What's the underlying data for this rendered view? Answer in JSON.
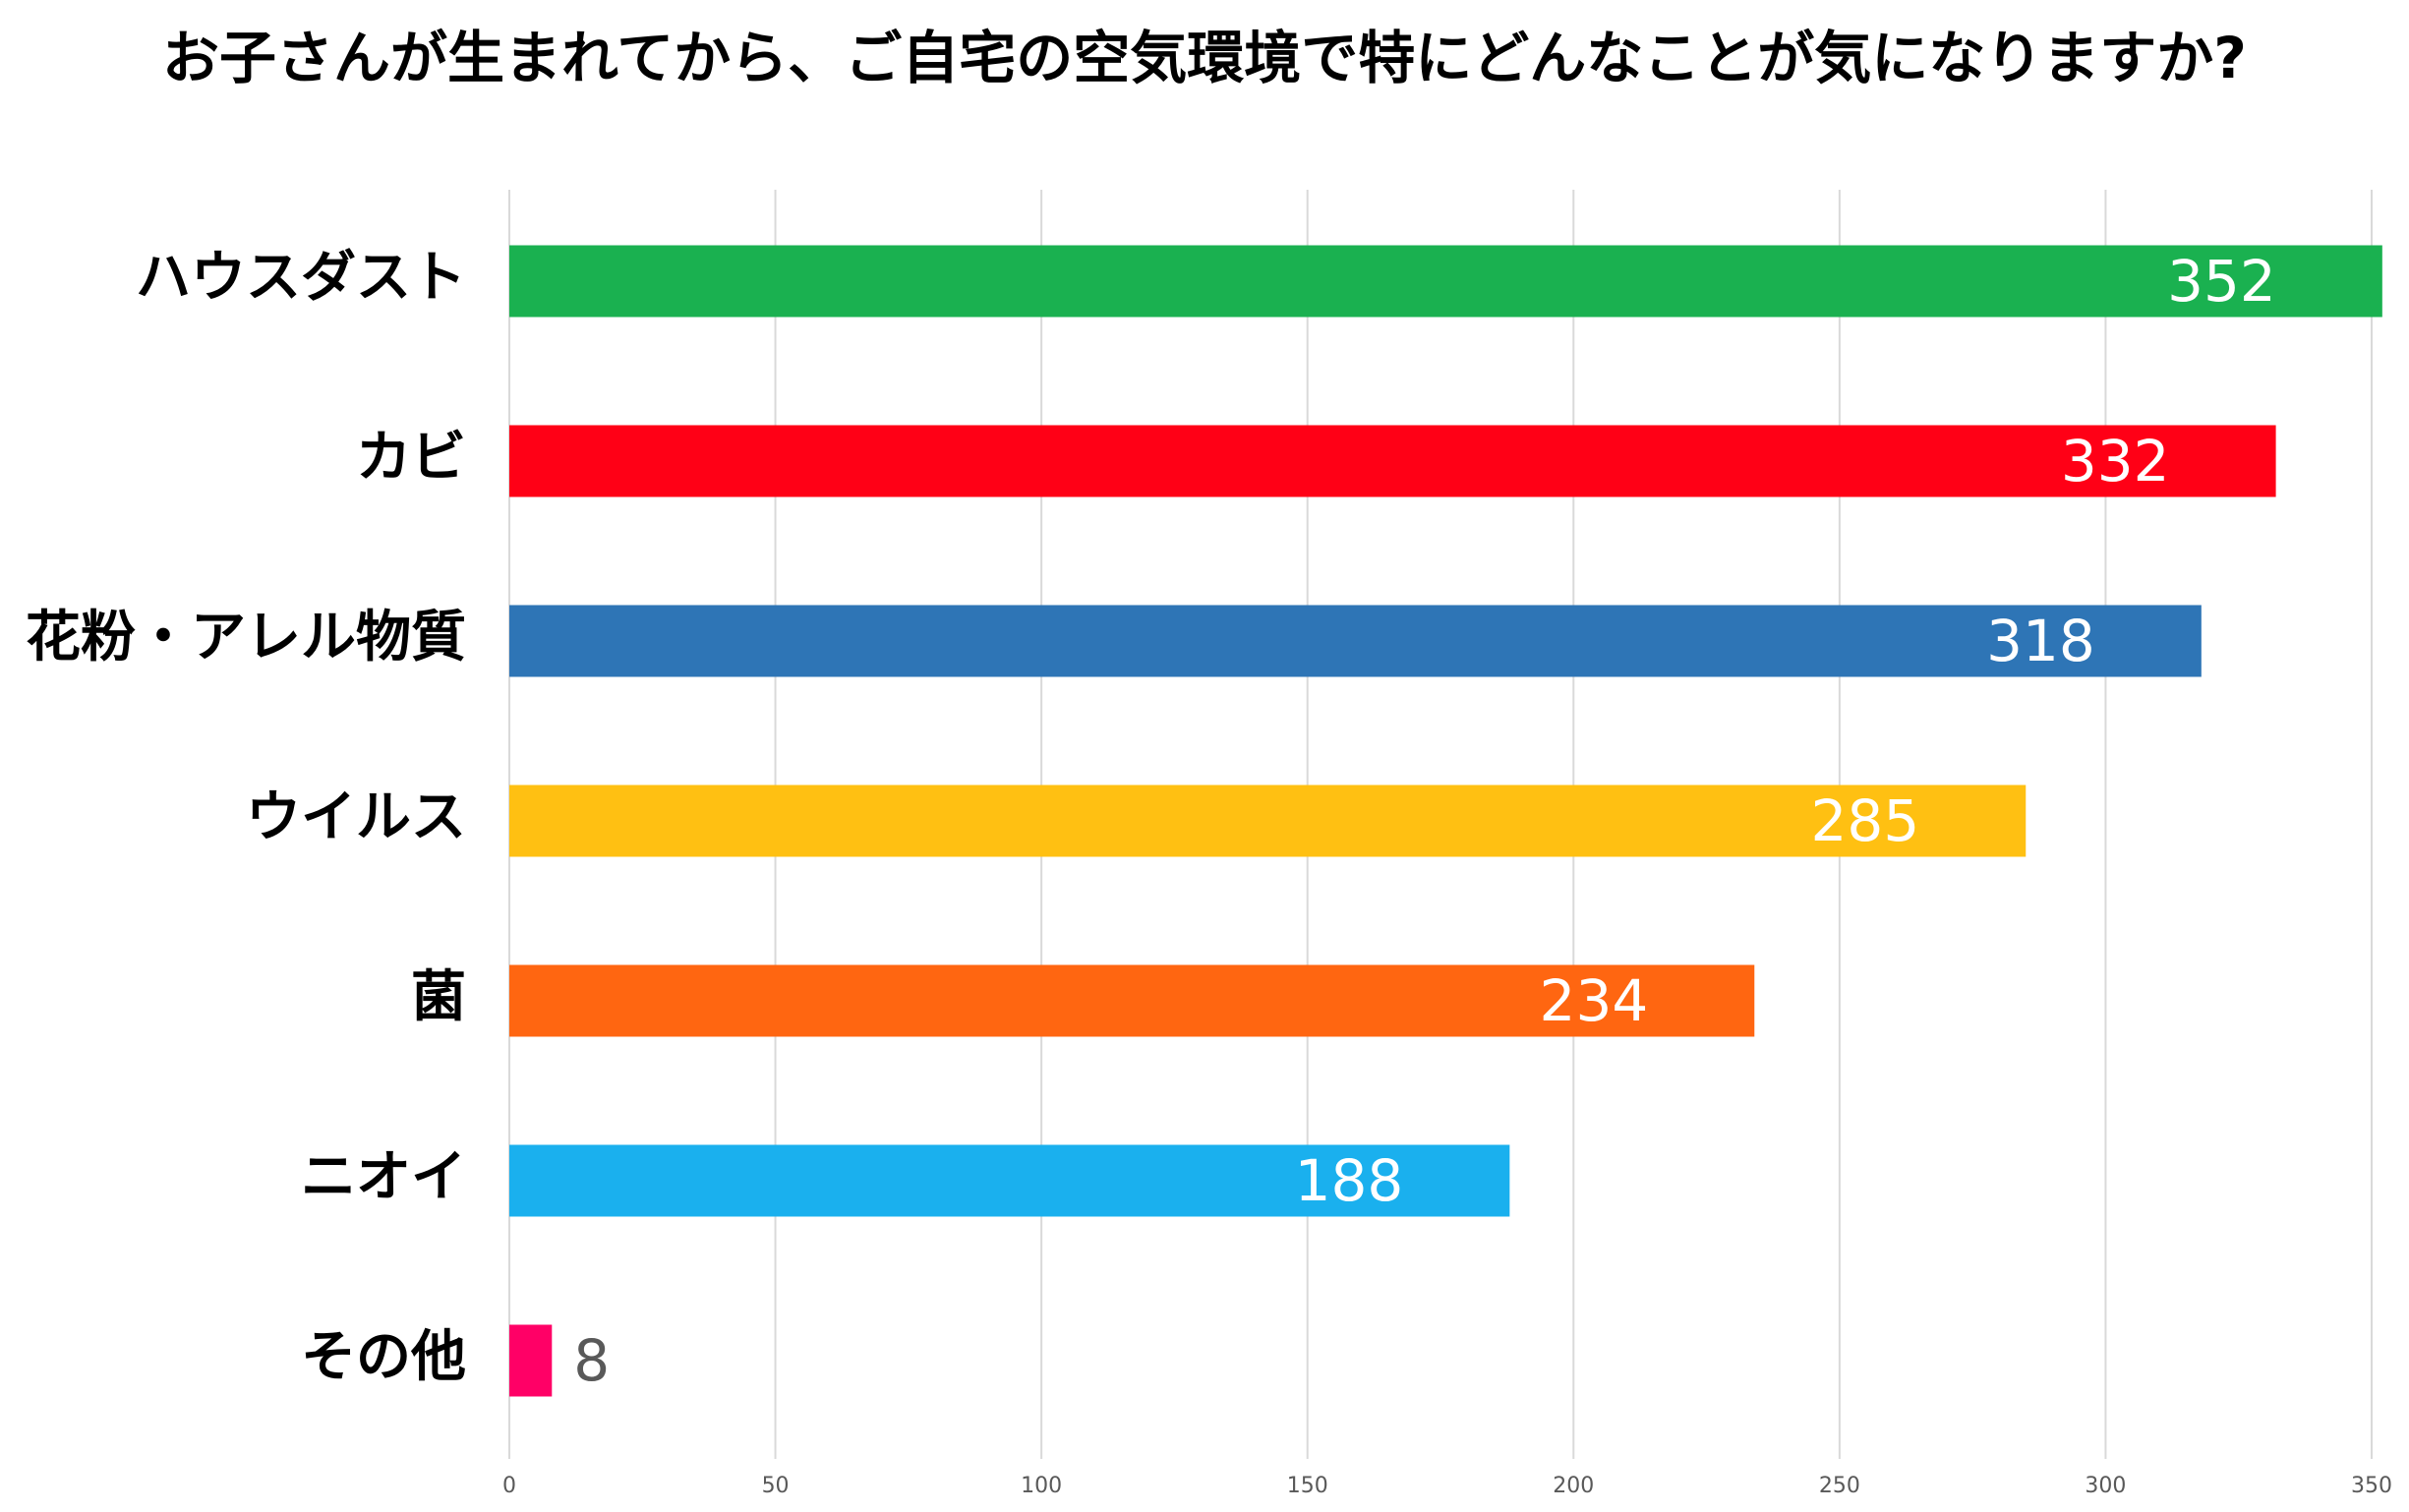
{
  "chart_data": {
    "type": "bar",
    "orientation": "horizontal",
    "title": "お子さんが生まれてから、ご自宅の空気環境で特にどんなことが気になりますか?",
    "categories": [
      "ハウスダスト",
      "カビ",
      "花粉・アレル物質",
      "ウイルス",
      "菌",
      "ニオイ",
      "その他"
    ],
    "values": [
      352,
      332,
      318,
      285,
      234,
      188,
      8
    ],
    "colors": [
      "#1ab150",
      "#ff0016",
      "#2e75b6",
      "#ffc012",
      "#ff6611",
      "#1ab0ee",
      "#ff0066"
    ],
    "xlim": [
      0,
      350
    ],
    "xticks": [
      0,
      50,
      100,
      150,
      200,
      250,
      300,
      350
    ],
    "grid": true
  }
}
